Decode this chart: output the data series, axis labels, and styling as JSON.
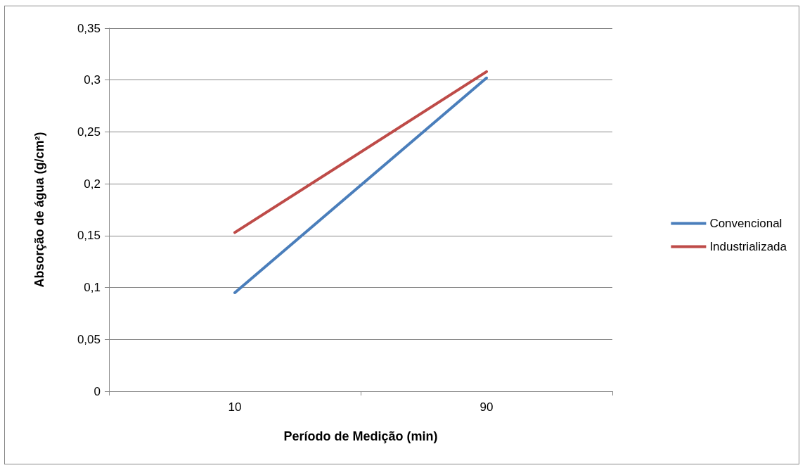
{
  "chart_data": {
    "type": "line",
    "xlabel": "Período de Medição (min)",
    "ylabel": "Absorção de água (g/cm²)",
    "categories": [
      "10",
      "90"
    ],
    "series": [
      {
        "name": "Convencional",
        "color": "#4a7ebb",
        "values": [
          0.095,
          0.302
        ]
      },
      {
        "name": "Industrializada",
        "color": "#be4b48",
        "values": [
          0.153,
          0.308
        ]
      }
    ],
    "ylim": [
      0,
      0.35
    ],
    "yticks": [
      {
        "value": 0,
        "label": "0"
      },
      {
        "value": 0.05,
        "label": "0,05"
      },
      {
        "value": 0.1,
        "label": "0,1"
      },
      {
        "value": 0.15,
        "label": "0,15"
      },
      {
        "value": 0.2,
        "label": "0,2"
      },
      {
        "value": 0.25,
        "label": "0,25"
      },
      {
        "value": 0.3,
        "label": "0,3"
      },
      {
        "value": 0.35,
        "label": "0,35"
      }
    ],
    "grid": "y",
    "legend": "right",
    "marker": "none",
    "line_style": "solid"
  }
}
